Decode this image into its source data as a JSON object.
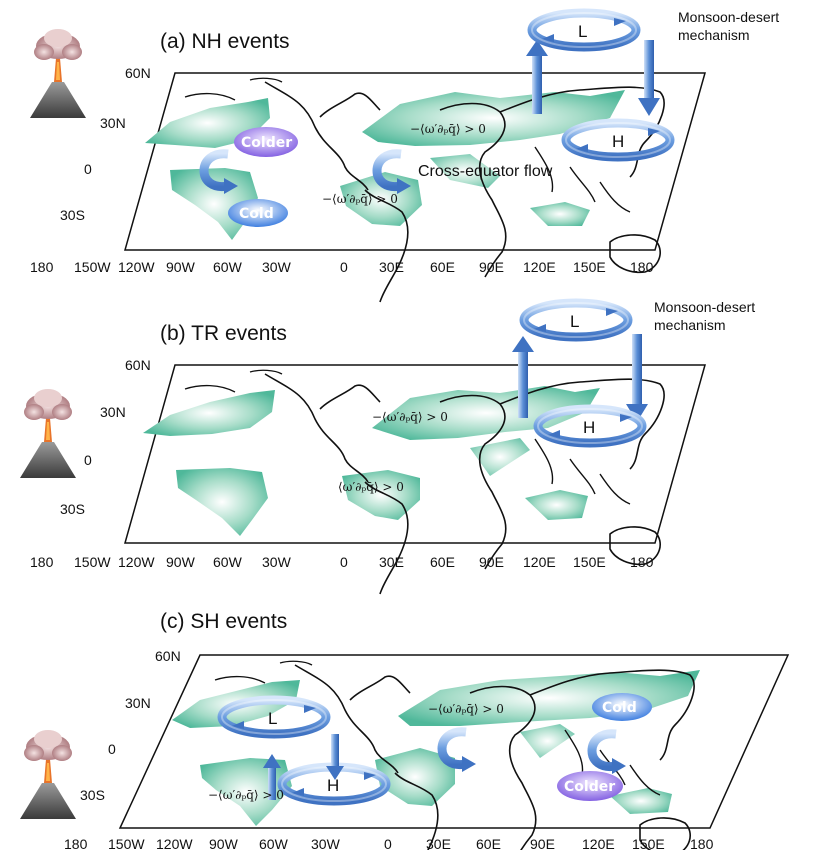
{
  "panels": [
    {
      "title": "(a) NH events",
      "lat_labels": [
        "60N",
        "30N",
        "0",
        "30S"
      ],
      "lon_labels": [
        "180",
        "150W",
        "120W",
        "90W",
        "60W",
        "30W",
        "0",
        "30E",
        "60E",
        "90E",
        "120E",
        "150E",
        "180"
      ],
      "mechanism": [
        "Monsoon-desert",
        "mechanism"
      ],
      "circulations": [
        "L",
        "H"
      ],
      "expressions": [
        "−⟨ω′∂ₚq̄⟩ > 0",
        "−⟨ω′∂ₚq̄⟩ > 0"
      ],
      "flow_label": "Cross-equator flow",
      "badges": [
        "Colder",
        "Cold"
      ]
    },
    {
      "title": "(b)   TR events",
      "lat_labels": [
        "60N",
        "30N",
        "0",
        "30S"
      ],
      "lon_labels": [
        "180",
        "150W",
        "120W",
        "90W",
        "60W",
        "30W",
        "0",
        "30E",
        "60E",
        "90E",
        "120E",
        "150E",
        "180"
      ],
      "mechanism": [
        "Monsoon-desert",
        "mechanism"
      ],
      "circulations": [
        "L",
        "H"
      ],
      "expressions": [
        "−⟨ω′∂ₚq̄⟩ > 0",
        "⟨ω′∂ₚq̄⟩ > 0"
      ]
    },
    {
      "title": "(c)  SH events",
      "lat_labels": [
        "60N",
        "30N",
        "0",
        "30S"
      ],
      "lon_labels": [
        "180",
        "150W",
        "120W",
        "90W",
        "60W",
        "30W",
        "0",
        "30E",
        "60E",
        "90E",
        "120E",
        "150E",
        "180"
      ],
      "circulations": [
        "L",
        "H"
      ],
      "expressions": [
        "−⟨ω′∂ₚq̄⟩ > 0",
        "−⟨ω′∂ₚq̄⟩ > 0"
      ],
      "badges": [
        "Cold",
        "Colder"
      ]
    }
  ],
  "colors": {
    "shading": "#4fb89a",
    "circulation": "#5b8fd6",
    "cold_badge": "#4a7fe0",
    "colder_badge": "#8a6fe0",
    "ash": "#b98a8c",
    "lava": "#e06a1a"
  },
  "icons": [
    "volcano-icon",
    "circulation-arrow-icon",
    "vertical-arrow-icon"
  ]
}
